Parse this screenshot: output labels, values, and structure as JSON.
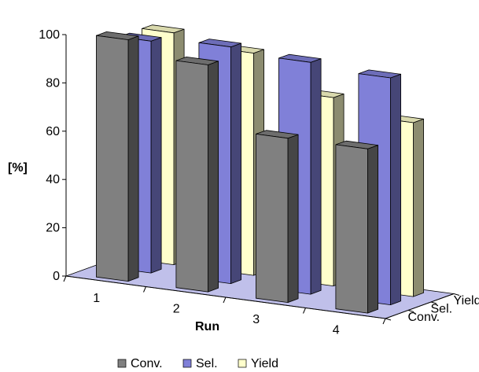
{
  "chart_data": {
    "type": "bar",
    "subtype": "3d-column",
    "xlabel": "Run",
    "ylabel": "[%]",
    "categories": [
      "1",
      "2",
      "3",
      "4"
    ],
    "depth_labels": [
      "Conv.",
      "Sel.",
      "Yield"
    ],
    "yticks": [
      "0",
      "20",
      "40",
      "60",
      "80",
      "100"
    ],
    "ylim": [
      0,
      100
    ],
    "legend_position": "bottom",
    "series": [
      {
        "name": "Conv.",
        "color": "#808080",
        "values": [
          100,
          94,
          68,
          68
        ]
      },
      {
        "name": "Sel.",
        "color": "#8080d8",
        "values": [
          96,
          98,
          96,
          94
        ]
      },
      {
        "name": "Yield",
        "color": "#ffffcc",
        "values": [
          96,
          92,
          78,
          72
        ]
      }
    ],
    "floor_color": "#c0c0ea"
  }
}
